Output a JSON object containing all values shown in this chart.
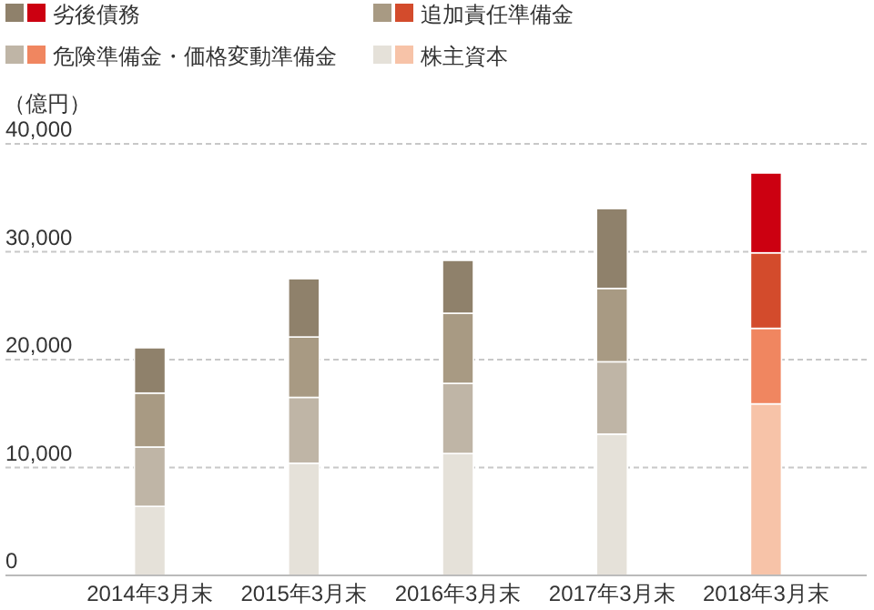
{
  "chart_data": {
    "type": "bar",
    "stacked": true,
    "ylabel": "（億円）",
    "categories": [
      "2014年3月末",
      "2015年3月末",
      "2016年3月末",
      "2017年3月末",
      "2018年3月末"
    ],
    "series": [
      {
        "name": "株主資本",
        "color": "#e5e1d9",
        "colors": [
          "#e5e1d9",
          "#e5e1d9",
          "#e5e1d9",
          "#e5e1d9",
          "#f7c3a8"
        ],
        "values": [
          6400,
          10400,
          11300,
          13100,
          15900
        ]
      },
      {
        "name": "危険準備金・価格変動準備金",
        "color": "#bfb5a6",
        "colors": [
          "#bfb5a6",
          "#bfb5a6",
          "#bfb5a6",
          "#bfb5a6",
          "#f08660"
        ],
        "values": [
          5500,
          6100,
          6500,
          6700,
          7000
        ]
      },
      {
        "name": "追加責任準備金",
        "color": "#a89a83",
        "colors": [
          "#a89a83",
          "#a89a83",
          "#a89a83",
          "#a89a83",
          "#d34b2c"
        ],
        "values": [
          5000,
          5600,
          6500,
          6800,
          7000
        ]
      },
      {
        "name": "劣後債務",
        "color": "#8f816b",
        "colors": [
          "#8f816b",
          "#8f816b",
          "#8f816b",
          "#8f816b",
          "#cc0011"
        ],
        "values": [
          4200,
          5400,
          4900,
          7400,
          7400
        ]
      }
    ],
    "ylim": [
      0,
      40000
    ],
    "yticks": [
      {
        "value": 0,
        "label": "0"
      },
      {
        "value": 10000,
        "label": "10,000"
      },
      {
        "value": 20000,
        "label": "20,000"
      },
      {
        "value": 30000,
        "label": "30,000"
      },
      {
        "value": 40000,
        "label": "40,000"
      }
    ],
    "grid": "y",
    "legend": "top"
  }
}
